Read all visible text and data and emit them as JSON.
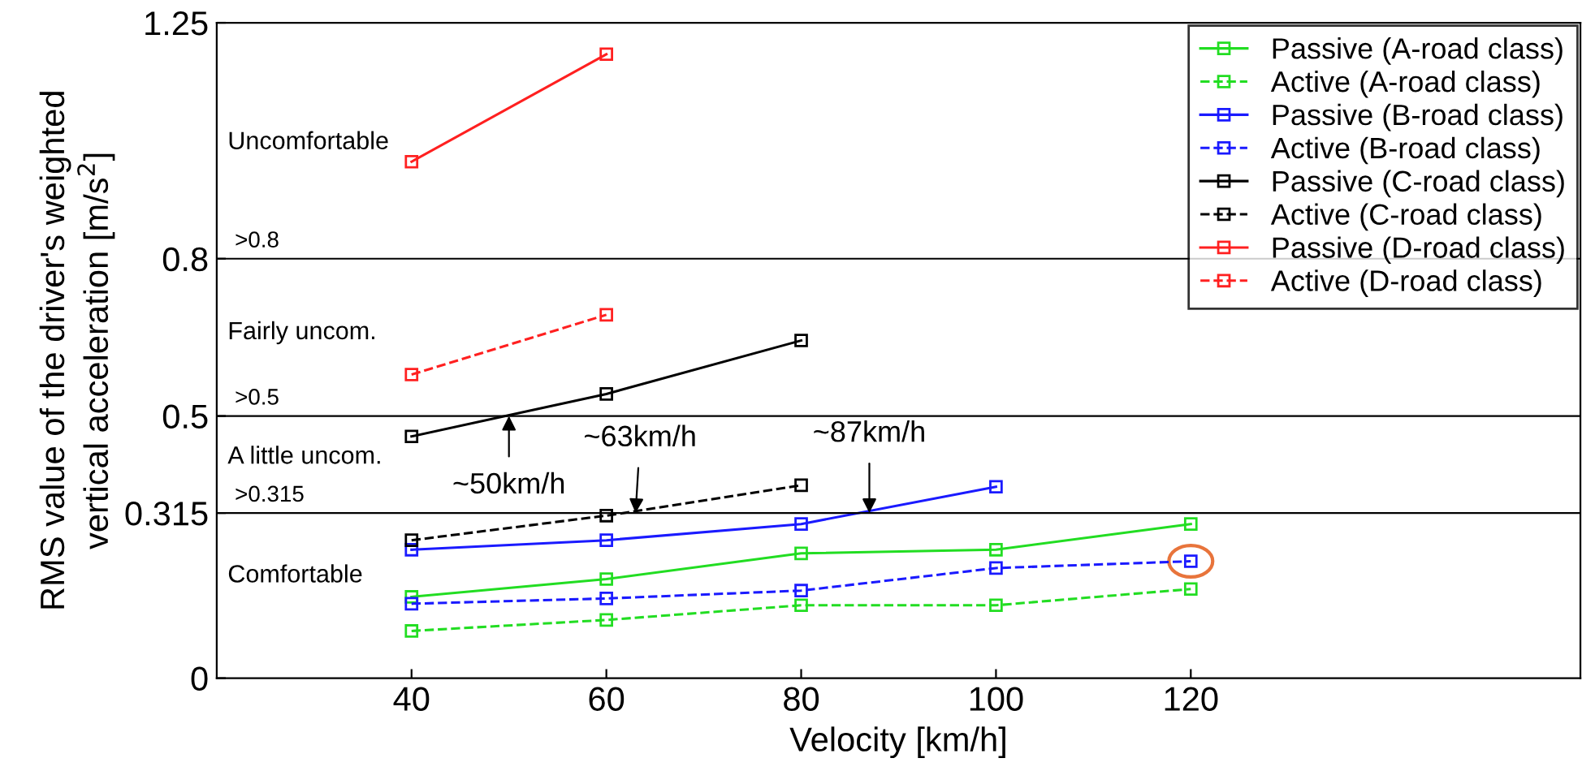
{
  "chart_data": {
    "type": "line",
    "xlabel": "Velocity [km/h]",
    "ylabel": "RMS value of the driver's weighted\nvertical acceleration [m/s$^{2}$]",
    "x": [
      40,
      60,
      80,
      100,
      120
    ],
    "series": [
      {
        "name": "Passive (A-road class)",
        "color": "#22dd22",
        "line_style": "solid",
        "values": [
          0.155,
          0.189,
          0.238,
          0.245,
          0.294
        ]
      },
      {
        "name": "Active (A-road class)",
        "color": "#22dd22",
        "line_style": "dashed",
        "values": [
          0.09,
          0.111,
          0.139,
          0.139,
          0.17
        ]
      },
      {
        "name": "Passive (B-road class)",
        "color": "#1a1aff",
        "line_style": "solid",
        "values": [
          0.245,
          0.263,
          0.294,
          0.365,
          null
        ]
      },
      {
        "name": "Active (B-road class)",
        "color": "#1a1aff",
        "line_style": "dashed",
        "values": [
          0.142,
          0.152,
          0.167,
          0.21,
          0.223
        ]
      },
      {
        "name": "Passive (C-road class)",
        "color": "#000000",
        "line_style": "solid",
        "values": [
          0.461,
          0.542,
          0.644,
          null,
          null
        ]
      },
      {
        "name": "Active (C-road class)",
        "color": "#000000",
        "line_style": "dashed",
        "values": [
          0.263,
          0.31,
          0.368,
          null,
          null
        ]
      },
      {
        "name": "Passive (D-road class)",
        "color": "#ff2020",
        "line_style": "solid",
        "values": [
          0.985,
          1.19,
          null,
          null,
          null
        ]
      },
      {
        "name": "Active (D-road class)",
        "color": "#ff2020",
        "line_style": "dashed",
        "values": [
          0.579,
          0.693,
          null,
          null,
          null
        ]
      }
    ],
    "marker": "square",
    "xlim": [
      20,
      160
    ],
    "xticks": [
      40,
      60,
      80,
      100,
      120
    ],
    "ylim": [
      0,
      1.25
    ],
    "yticks": [
      0,
      0.315,
      0.5,
      0.8,
      1.25
    ],
    "ref_lines": [
      {
        "axis": "y",
        "value": 0.8,
        "label": ">0.8",
        "color": "#000000"
      },
      {
        "axis": "y",
        "value": 0.5,
        "label": ">0.5",
        "color": "#000000"
      },
      {
        "axis": "y",
        "value": 0.315,
        "label": ">0.315",
        "color": "#000000"
      }
    ],
    "annotations": [
      "Uncomfortable",
      "Fairly uncom.",
      "A little uncom.",
      "Comfortable",
      {
        "text": "~50km/h",
        "x": 50,
        "y": 0.5
      },
      {
        "text": "~63km/h",
        "x": 63,
        "y": 0.315
      },
      {
        "text": "~87km/h",
        "x": 87,
        "y": 0.315
      }
    ],
    "legend": "top right",
    "grid": false
  }
}
